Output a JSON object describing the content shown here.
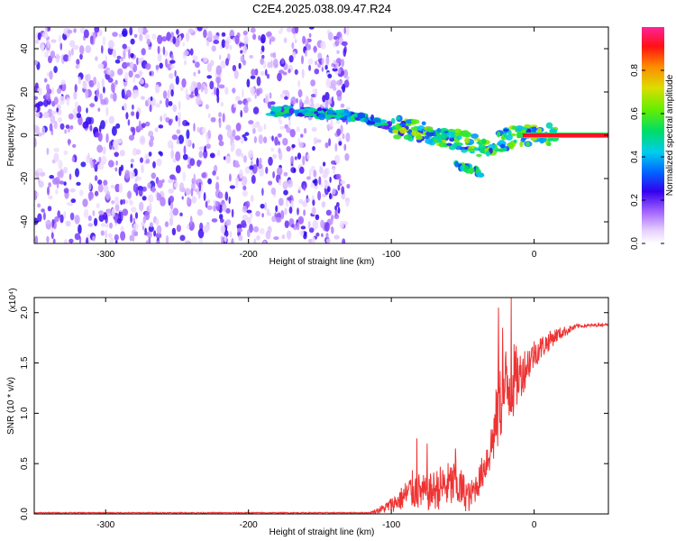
{
  "title": "C2E4.2025.038.09.47.R24",
  "chart_data": [
    {
      "type": "heatmap",
      "name": "spectrogram",
      "xlabel": "Height of straight line (km)",
      "ylabel": "Frequency (Hz)",
      "xlim": [
        -350,
        52
      ],
      "ylim": [
        -50,
        50
      ],
      "xticks": [
        -300,
        -200,
        -100,
        0
      ],
      "yticks": [
        -40,
        -20,
        0,
        20,
        40
      ],
      "noise_region_x": [
        -350,
        -130
      ],
      "signal_track": [
        {
          "x": -185,
          "f": 11
        },
        {
          "x": -170,
          "f": 11
        },
        {
          "x": -160,
          "f": 11
        },
        {
          "x": -150,
          "f": 10
        },
        {
          "x": -140,
          "f": 10
        },
        {
          "x": -130,
          "f": 9
        },
        {
          "x": -120,
          "f": 8
        },
        {
          "x": -110,
          "f": 6
        },
        {
          "x": -100,
          "f": 4
        },
        {
          "x": -90,
          "f": 3
        },
        {
          "x": -80,
          "f": 2
        },
        {
          "x": -70,
          "f": 1
        },
        {
          "x": -60,
          "f": -1
        },
        {
          "x": -50,
          "f": -3
        },
        {
          "x": -40,
          "f": -5
        },
        {
          "x": -30,
          "f": -4
        },
        {
          "x": -20,
          "f": -2
        },
        {
          "x": -10,
          "f": 0
        },
        {
          "x": 0,
          "f": 0
        },
        {
          "x": 52,
          "f": 0
        }
      ],
      "colorbar": {
        "label": "Normalized spectral amplitude",
        "ticks": [
          0.0,
          0.2,
          0.4,
          0.6,
          0.8
        ],
        "tick_labels": [
          "0.0",
          "0.2",
          "0.4",
          "0.6",
          "0.8"
        ],
        "range": [
          0,
          1
        ]
      }
    },
    {
      "type": "line",
      "name": "snr",
      "xlabel": "Height of straight line (km)",
      "ylabel": "SNR (10 * v/v)",
      "scale_label": "(x10⁴)",
      "xlim": [
        -350,
        52
      ],
      "ylim": [
        0,
        2.15
      ],
      "xticks": [
        -300,
        -200,
        -100,
        0
      ],
      "yticks": [
        0.0,
        0.5,
        1.0,
        1.5,
        2.0
      ],
      "ytick_labels": [
        "0.0",
        "0.5",
        "1.0",
        "1.5",
        "2.0"
      ],
      "color": "#ee3333",
      "envelope": [
        {
          "x": -350,
          "base": 0.01,
          "amp": 0.01
        },
        {
          "x": -115,
          "base": 0.01,
          "amp": 0.01
        },
        {
          "x": -105,
          "base": 0.04,
          "amp": 0.1
        },
        {
          "x": -95,
          "base": 0.1,
          "amp": 0.2
        },
        {
          "x": -85,
          "base": 0.18,
          "amp": 0.4
        },
        {
          "x": -75,
          "base": 0.15,
          "amp": 0.35
        },
        {
          "x": -65,
          "base": 0.2,
          "amp": 0.45
        },
        {
          "x": -55,
          "base": 0.22,
          "amp": 0.5
        },
        {
          "x": -45,
          "base": 0.12,
          "amp": 0.3
        },
        {
          "x": -38,
          "base": 0.3,
          "amp": 0.3
        },
        {
          "x": -30,
          "base": 0.6,
          "amp": 0.5
        },
        {
          "x": -25,
          "base": 0.9,
          "amp": 0.8
        },
        {
          "x": -20,
          "base": 1.1,
          "amp": 0.9
        },
        {
          "x": -15,
          "base": 1.2,
          "amp": 0.8
        },
        {
          "x": -10,
          "base": 1.3,
          "amp": 0.5
        },
        {
          "x": 0,
          "base": 1.55,
          "amp": 0.3
        },
        {
          "x": 15,
          "base": 1.75,
          "amp": 0.15
        },
        {
          "x": 30,
          "base": 1.86,
          "amp": 0.04
        },
        {
          "x": 52,
          "base": 1.88,
          "amp": 0.02
        }
      ],
      "peaks": [
        {
          "x": -25,
          "y": 2.05
        },
        {
          "x": -22,
          "y": 1.85
        },
        {
          "x": -16,
          "y": 2.15
        },
        {
          "x": -82,
          "y": 0.75
        },
        {
          "x": -75,
          "y": 0.7
        },
        {
          "x": -55,
          "y": 0.65
        }
      ]
    }
  ]
}
